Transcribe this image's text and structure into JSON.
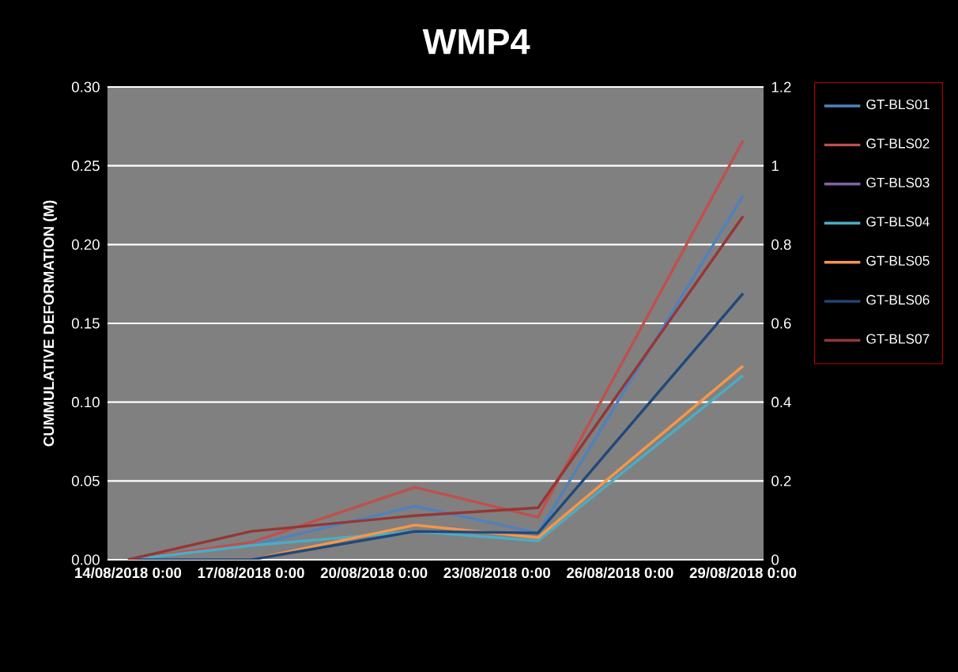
{
  "chart_data": {
    "type": "line",
    "title": "WMP4",
    "ylabel": "CUMMULATIVE DEFORMATION (M)",
    "x": [
      "2018-08-14",
      "2018-08-17",
      "2018-08-21",
      "2018-08-24",
      "2018-08-29"
    ],
    "series": [
      {
        "name": "GT-BLS01",
        "color": "#4f81bd",
        "values": [
          0,
          0.009,
          0.034,
          0.017,
          0.231
        ]
      },
      {
        "name": "GT-BLS02",
        "color": "#c0504d",
        "values": [
          0,
          0.011,
          0.046,
          0.027,
          0.266
        ]
      },
      {
        "name": "GT-BLS03",
        "color": "#8064a2",
        "values": [
          null,
          null,
          null,
          null,
          null
        ]
      },
      {
        "name": "GT-BLS04",
        "color": "#4bacc6",
        "values": [
          0,
          0.009,
          0.018,
          0.012,
          0.117
        ]
      },
      {
        "name": "GT-BLS05",
        "color": "#f79646",
        "values": [
          0,
          0,
          0.022,
          0.014,
          0.123
        ]
      },
      {
        "name": "GT-BLS06",
        "color": "#1f497d",
        "values": [
          0,
          0,
          0.018,
          0.017,
          0.169
        ]
      },
      {
        "name": "GT-BLS07",
        "color": "#953735",
        "values": [
          0,
          0.018,
          0.028,
          0.033,
          0.218
        ]
      }
    ],
    "xlim": [
      "2018-08-13T12:00",
      "2018-08-29T12:00"
    ],
    "xticks": [
      {
        "value": "2018-08-14",
        "label": "14/08/2018 0:00"
      },
      {
        "value": "2018-08-17",
        "label": "17/08/2018 0:00"
      },
      {
        "value": "2018-08-20",
        "label": "20/08/2018 0:00"
      },
      {
        "value": "2018-08-23",
        "label": "23/08/2018 0:00"
      },
      {
        "value": "2018-08-26",
        "label": "26/08/2018 0:00"
      },
      {
        "value": "2018-08-29",
        "label": "29/08/2018 0:00"
      }
    ],
    "ylim": [
      0,
      0.3
    ],
    "yticks": [
      {
        "value": 0,
        "label": "0.00"
      },
      {
        "value": 0.05,
        "label": "0.05"
      },
      {
        "value": 0.1,
        "label": "0.10"
      },
      {
        "value": 0.15,
        "label": "0.15"
      },
      {
        "value": 0.2,
        "label": "0.20"
      },
      {
        "value": 0.25,
        "label": "0.25"
      },
      {
        "value": 0.3,
        "label": "0.30"
      }
    ],
    "y2lim": [
      0,
      1.2
    ],
    "y2ticks": [
      0,
      0.2,
      0.4,
      0.6,
      0.8,
      1,
      1.2
    ],
    "grid": "y",
    "legend": "right"
  }
}
